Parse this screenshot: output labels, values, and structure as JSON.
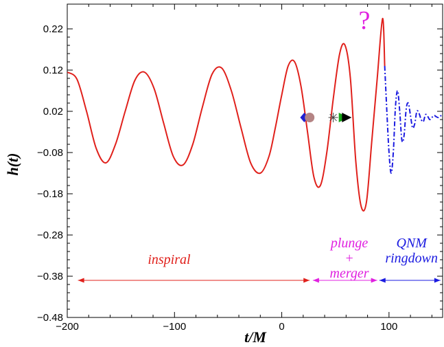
{
  "chart_data": {
    "type": "line",
    "xlabel": "t/M",
    "ylabel": "h(t)",
    "xlim": [
      -200,
      150
    ],
    "ylim": [
      -0.48,
      0.28
    ],
    "x_ticks": [
      -200,
      -100,
      0,
      100
    ],
    "y_ticks": [
      0.22,
      0.12,
      0.02,
      -0.08,
      -0.18,
      -0.28,
      -0.38,
      -0.48
    ],
    "x_tick_labels": [
      "−200",
      "−100",
      "0",
      "100"
    ],
    "y_tick_labels": [
      "0.22",
      "0.12",
      "0.02",
      "−0.08",
      "−0.18",
      "−0.28",
      "−0.38",
      "−0.48"
    ],
    "grid": false,
    "series": [
      {
        "style": "solid",
        "color": "#e0201b",
        "x": [
          -200,
          -191,
          -182,
          -173,
          -164,
          -155,
          -146,
          -137,
          -128,
          -119,
          -110,
          -101,
          -92,
          -83,
          -74,
          -65,
          -56,
          -47,
          -38,
          -29,
          -20,
          -12,
          -6,
          0,
          6,
          12,
          18,
          24,
          30,
          36,
          42,
          48,
          54,
          59,
          64,
          69,
          74,
          79,
          84,
          89,
          94,
          96
        ],
        "y": [
          0.115,
          0.098,
          0.02,
          -0.07,
          -0.105,
          -0.06,
          0.02,
          0.095,
          0.115,
          0.075,
          -0.01,
          -0.09,
          -0.11,
          -0.06,
          0.03,
          0.11,
          0.125,
          0.07,
          -0.02,
          -0.105,
          -0.13,
          -0.09,
          -0.02,
          0.06,
          0.13,
          0.14,
          0.08,
          -0.03,
          -0.14,
          -0.16,
          -0.08,
          0.05,
          0.16,
          0.18,
          0.1,
          -0.1,
          -0.21,
          -0.2,
          -0.05,
          0.1,
          0.245,
          0.13
        ]
      },
      {
        "style": "dash-dot",
        "color": "#1a1ae0",
        "x": [
          96,
          98,
          100,
          102,
          104,
          106,
          108,
          110,
          112,
          114,
          116,
          118,
          120,
          122,
          124,
          126,
          128,
          130,
          132,
          134,
          136,
          138,
          140,
          142,
          144,
          146,
          148,
          150
        ],
        "y": [
          0.13,
          0.02,
          -0.08,
          -0.13,
          -0.08,
          0.03,
          0.07,
          0.02,
          -0.05,
          -0.04,
          0.025,
          0.04,
          0.01,
          -0.02,
          -0.01,
          0.02,
          0.015,
          0.0,
          -0.005,
          0.012,
          0.008,
          0.0,
          0.005,
          0.01,
          0.007,
          0.005,
          0.009,
          0.008
        ]
      }
    ],
    "markers": [
      {
        "shape": "diamond",
        "color": "#2020d0",
        "x": 21,
        "y": 0.005
      },
      {
        "shape": "circle",
        "color": "#b48484",
        "x": 26,
        "y": 0.005
      },
      {
        "shape": "asterisk",
        "color": "#444444",
        "x": 48,
        "y": 0.005
      },
      {
        "shape": "triangle-right",
        "color": "#16a316",
        "x": 57,
        "y": 0.005
      },
      {
        "shape": "triangle-right",
        "color": "#000000",
        "x": 60,
        "y": 0.005
      }
    ],
    "annotations": [
      {
        "id": "inspiral",
        "lines": [
          "inspiral"
        ],
        "color": "#e0201b",
        "x": -105,
        "y": -0.35,
        "arrow": [
          -190,
          26
        ],
        "arrow_y": -0.39
      },
      {
        "id": "merger",
        "lines": [
          "plunge",
          "+",
          "merger"
        ],
        "color": "#e020e0",
        "x": 63,
        "y": -0.31,
        "arrow": [
          29,
          89
        ],
        "arrow_y": -0.39
      },
      {
        "id": "qnm",
        "lines": [
          "QNM",
          "ringdown"
        ],
        "color": "#1a1ae0",
        "x": 121,
        "y": -0.31,
        "arrow": [
          91,
          148
        ],
        "arrow_y": -0.39
      },
      {
        "id": "question",
        "lines": [
          "?"
        ],
        "color": "#e020e0",
        "x": 77,
        "y": 0.22,
        "arrow": null,
        "arrow_y": null
      }
    ]
  }
}
